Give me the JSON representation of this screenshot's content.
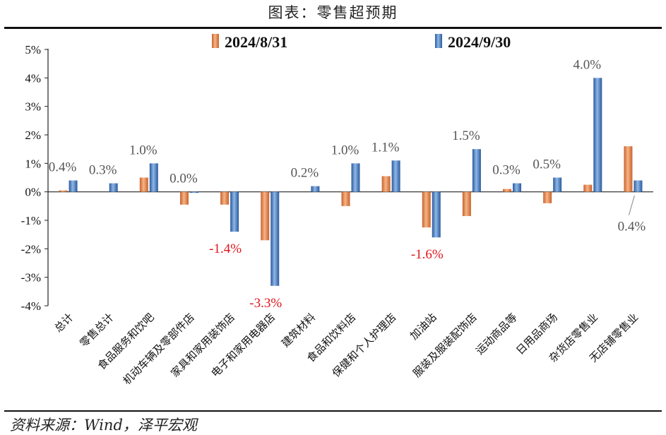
{
  "title": "图表：零售超预期",
  "source": "资料来源：Wind，泽平宏观",
  "colors": {
    "s1": "#e8834a",
    "s2": "#3f78c4",
    "neg_label": "#e0161c",
    "pos_label": "#555555"
  },
  "chart_data": {
    "type": "bar",
    "title": "图表：零售超预期",
    "categories": [
      "总计",
      "零售总计",
      "食品服务和饮吧",
      "机动车辆及零部件店",
      "家具和家用装饰店",
      "电子和家用电器店",
      "建筑材料",
      "食品和饮料店",
      "保健和个人护理店",
      "加油站",
      "服装及服装配饰店",
      "运动商品等",
      "日用品商场",
      "杂货店零售业",
      "无店铺零售业"
    ],
    "series": [
      {
        "name": "2024/8/31",
        "values": [
          0.05,
          0.0,
          0.5,
          -0.45,
          -0.45,
          -1.7,
          0.0,
          -0.5,
          0.55,
          -1.25,
          -0.85,
          0.1,
          -0.4,
          0.25,
          1.6
        ]
      },
      {
        "name": "2024/9/30",
        "values": [
          0.4,
          0.3,
          1.0,
          0.0,
          -1.4,
          -3.3,
          0.2,
          1.0,
          1.1,
          -1.6,
          1.5,
          0.3,
          0.5,
          4.0,
          0.4
        ]
      }
    ],
    "data_labels": [
      "0.4%",
      "0.3%",
      "1.0%",
      "0.0%",
      "-1.4%",
      "-3.3%",
      "0.2%",
      "1.0%",
      "1.1%",
      "-1.6%",
      "1.5%",
      "0.3%",
      "0.5%",
      "4.0%",
      "0.4%"
    ],
    "ylim": [
      -4,
      5
    ],
    "yticks": [
      "5%",
      "4%",
      "3%",
      "2%",
      "1%",
      "0%",
      "-1%",
      "-2%",
      "-3%",
      "-4%"
    ],
    "ytick_values": [
      5,
      4,
      3,
      2,
      1,
      0,
      -1,
      -2,
      -3,
      -4
    ],
    "legend_position": "top-center",
    "grid": false
  }
}
